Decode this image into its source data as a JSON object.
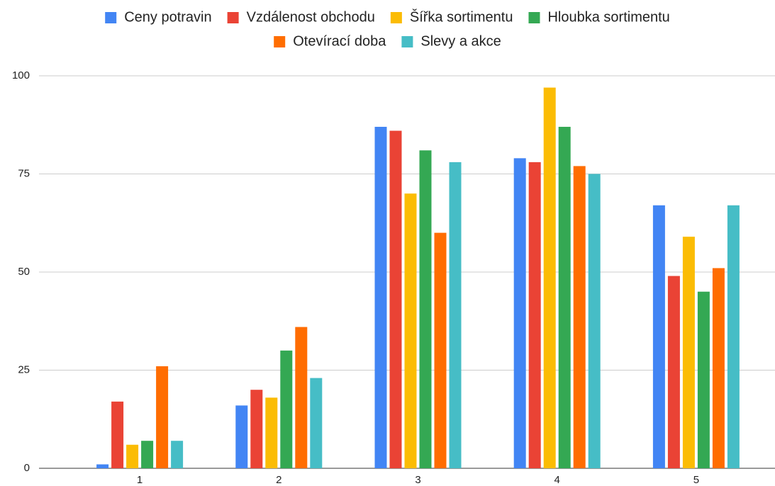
{
  "chart_data": {
    "type": "bar",
    "categories": [
      "1",
      "2",
      "3",
      "4",
      "5"
    ],
    "series": [
      {
        "name": "Ceny potravin",
        "color": "#4285f4",
        "values": [
          1,
          16,
          87,
          79,
          67
        ]
      },
      {
        "name": "Vzdálenost obchodu",
        "color": "#ea4335",
        "values": [
          17,
          20,
          86,
          78,
          49
        ]
      },
      {
        "name": "Šířka sortimentu",
        "color": "#fbbc04",
        "values": [
          6,
          18,
          70,
          97,
          59
        ]
      },
      {
        "name": "Hloubka sortimentu",
        "color": "#34a853",
        "values": [
          7,
          30,
          81,
          87,
          45
        ]
      },
      {
        "name": "Otevírací doba",
        "color": "#ff6d01",
        "values": [
          26,
          36,
          60,
          77,
          51
        ]
      },
      {
        "name": "Slevy a akce",
        "color": "#46bdc6",
        "values": [
          7,
          23,
          78,
          75,
          67
        ]
      }
    ],
    "ylim": [
      0,
      100
    ],
    "yticks": [
      0,
      25,
      50,
      75,
      100
    ],
    "grid": true,
    "legend": "top"
  }
}
